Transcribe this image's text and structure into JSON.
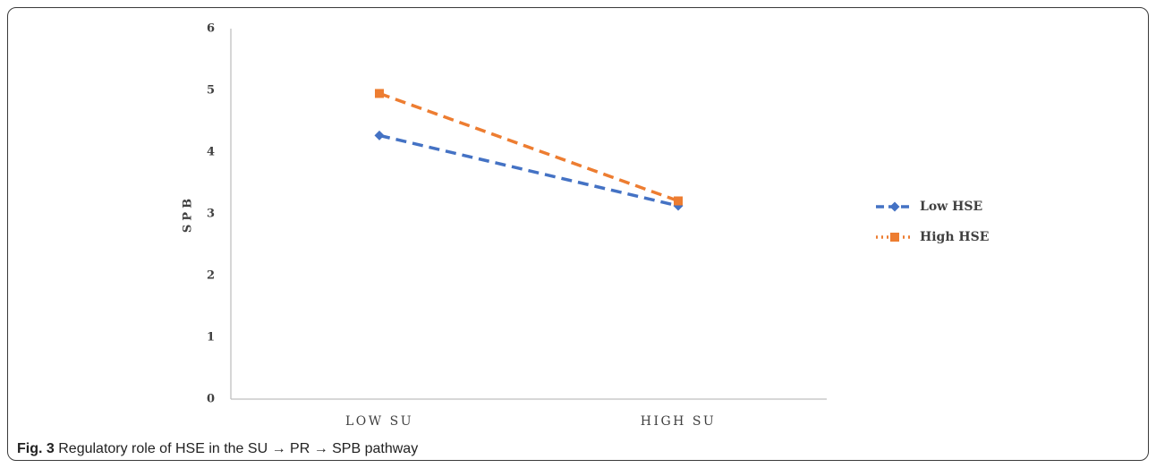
{
  "caption": {
    "label": "Fig. 3",
    "text": "Regulatory role of HSE in the SU → PR → SPB pathway"
  },
  "chart_data": {
    "type": "line",
    "categories": [
      "LOW SU",
      "HIGH SU"
    ],
    "ylabel": "SPB",
    "ylim": [
      0,
      6
    ],
    "yticks": [
      0,
      1,
      2,
      3,
      4,
      5,
      6
    ],
    "legend_position": "right",
    "series": [
      {
        "name": "Low HSE",
        "values": [
          4.27,
          3.13
        ],
        "color": "#4472C4",
        "marker": "diamond",
        "line_style": "dashed"
      },
      {
        "name": "High HSE",
        "values": [
          4.95,
          3.21
        ],
        "color": "#ED7D31",
        "marker": "square",
        "line_style": "dashed"
      }
    ]
  }
}
